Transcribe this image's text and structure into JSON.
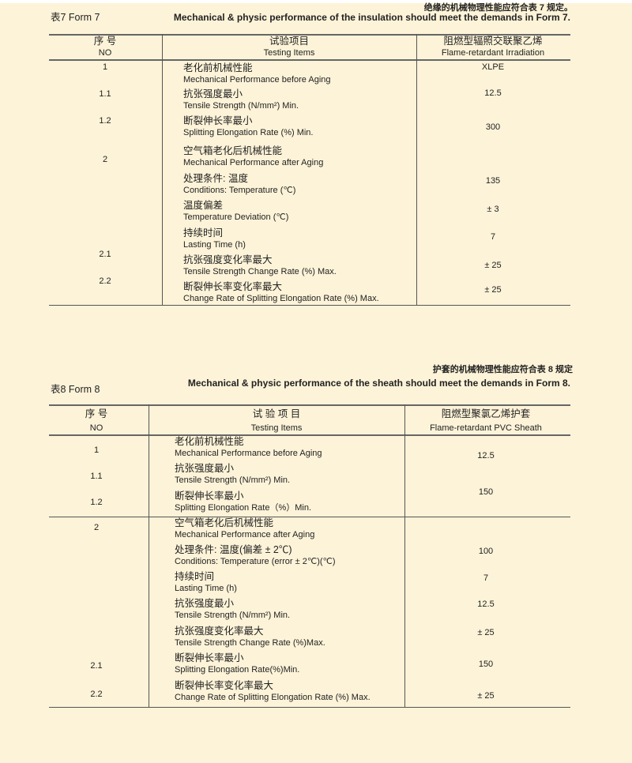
{
  "form7": {
    "caption_cn": "绝缘的机械物理性能应符合表 7 规定。",
    "label": "表7  Form 7",
    "caption_en": "Mechanical  & physic performance of the insulation should meet the demands in Form 7.",
    "headers": [
      {
        "cn": "序 号",
        "en": "NO"
      },
      {
        "cn": "试验项目",
        "en": "Testing Items"
      },
      {
        "cn": "阻燃型辐照交联聚乙烯",
        "en": "Flame-retardant Irradiation"
      }
    ],
    "numbers": [
      "1",
      "1.1",
      "1.2",
      "2",
      "2.1",
      "2.2"
    ],
    "items": [
      {
        "cn": "老化前机械性能",
        "en": "Mechanical Performance before Aging"
      },
      {
        "cn": "抗张强度最小",
        "en": "Tensile Strength (N/mm²) Min."
      },
      {
        "cn": "断裂伸长率最小",
        "en": "Splitting Elongation Rate (%) Min."
      },
      {
        "cn": "空气箱老化后机械性能",
        "en": "Mechanical Performance after Aging"
      },
      {
        "cn": "处理条件:  温度",
        "en": "Conditions: Temperature (℃)"
      },
      {
        "cn": "温度偏差",
        "en": "Temperature Deviation (℃)"
      },
      {
        "cn": "持续时间",
        "en": "Lasting Time (h)"
      },
      {
        "cn": "抗张强度变化率最大",
        "en": "Tensile Strength Change Rate (%) Max."
      },
      {
        "cn": "断裂伸长率变化率最大",
        "en": "Change Rate of Splitting Elongation Rate (%) Max."
      }
    ],
    "values": [
      "XLPE",
      "12.5",
      "300",
      "135",
      "± 3",
      "7",
      "± 25",
      "± 25"
    ]
  },
  "form8": {
    "caption_cn": "护套的机械物理性能应符合表 8 规定",
    "label": "表8  Form 8",
    "caption_en": "Mechanical  & physic performance of the sheath should meet the demands in Form 8.",
    "headers": [
      {
        "cn": "序 号",
        "en": "NO"
      },
      {
        "cn": "试 验 项 目",
        "en": "Testing Items"
      },
      {
        "cn": "阻燃型聚氯乙烯护套",
        "en": "Flame-retardant PVC Sheath"
      }
    ],
    "numbers": [
      "1",
      "1.1",
      "1.2",
      "2",
      "2.1",
      "2.2"
    ],
    "items": [
      {
        "cn": "老化前机械性能",
        "en": "Mechanical Performance before Aging"
      },
      {
        "cn": "抗张强度最小",
        "en": "Tensile Strength (N/mm²) Min."
      },
      {
        "cn": "断裂伸长率最小",
        "en": "Splitting Elongation Rate（%）Min."
      },
      {
        "cn": "空气箱老化后机械性能",
        "en": "Mechanical Performance after Aging"
      },
      {
        "cn": "处理条件:  温度(偏差 ± 2℃)",
        "en": " Conditions: Temperature (error ± 2℃)(℃)"
      },
      {
        "cn": "持续时间",
        "en": "Lasting Time (h)"
      },
      {
        "cn": "抗张强度最小",
        "en": "Tensile Strength (N/mm²) Min."
      },
      {
        "cn": "抗张强度变化率最大",
        "en": "Tensile Strength Change Rate (%)Max."
      },
      {
        "cn": "断裂伸长率最小",
        "en": "Splitting Elongation Rate(%)Min."
      },
      {
        "cn": "断裂伸长率变化率最大",
        "en": "Change Rate of Splitting Elongation Rate (%) Max."
      }
    ],
    "values": [
      "12.5",
      "150",
      "100",
      "7",
      "12.5",
      "± 25",
      "150",
      "± 25"
    ]
  }
}
